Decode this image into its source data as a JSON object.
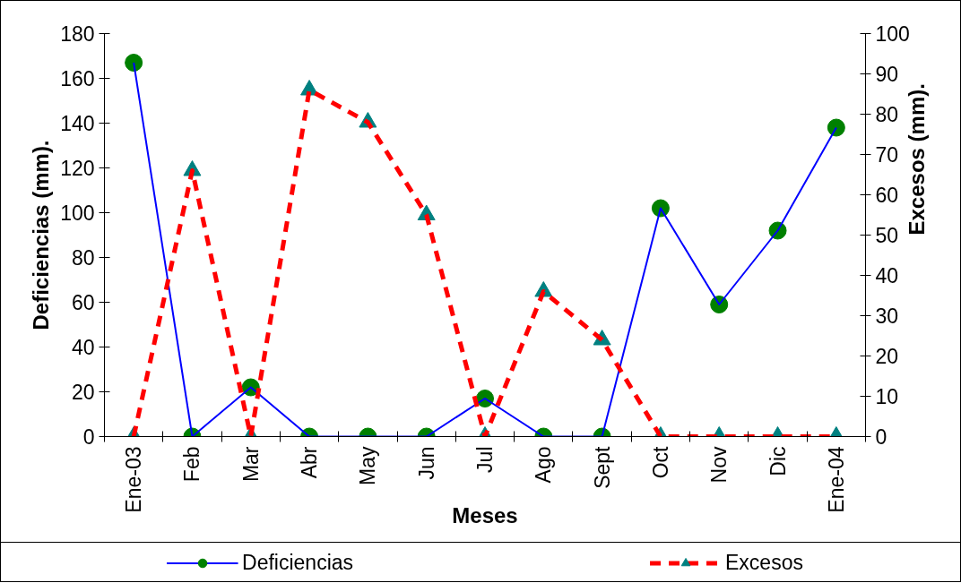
{
  "chart_data": {
    "type": "line",
    "xlabel": "Meses",
    "ylabel": "Deficiencias (mm).",
    "y2label": "Excesos (mm).",
    "categories": [
      "Ene-03",
      "Feb",
      "Mar",
      "Abr",
      "May",
      "Jun",
      "Jul",
      "Ago",
      "Sept",
      "Oct",
      "Nov",
      "Dic",
      "Ene-04"
    ],
    "ylim": [
      0,
      180
    ],
    "yticks": [
      0,
      20,
      40,
      60,
      80,
      100,
      120,
      140,
      160,
      180
    ],
    "y2lim": [
      0,
      100
    ],
    "y2ticks": [
      0,
      10,
      20,
      30,
      40,
      50,
      60,
      70,
      80,
      90,
      100
    ],
    "grid": false,
    "legend": "bottom",
    "series": [
      {
        "name": "Deficiencias",
        "color": "#0000ff",
        "colors": [
          "#008000",
          "#008000",
          "#008000",
          "#008000",
          "#008000",
          "#008000",
          "#008000",
          "#008000",
          "#008000",
          "#008000",
          "#008000",
          "#008000",
          "#008000"
        ],
        "marker": "circle",
        "line_style": "solid",
        "values": [
          167,
          0,
          22,
          0,
          0,
          0,
          17,
          0,
          0,
          102,
          59,
          92,
          138
        ]
      },
      {
        "name": "Excesos",
        "color": "#ff0000",
        "colors": [
          "#008080",
          "#008080",
          "#008080",
          "#008080",
          "#008080",
          "#008080",
          "#008080",
          "#008080",
          "#008080",
          "#008080",
          "#008080",
          "#008080",
          "#008080"
        ],
        "marker": "triangle",
        "line_style": "dashed",
        "axis": "y2",
        "values": [
          0,
          66,
          0,
          86,
          78,
          55,
          0,
          36,
          24,
          0,
          0,
          0,
          0
        ]
      }
    ]
  }
}
